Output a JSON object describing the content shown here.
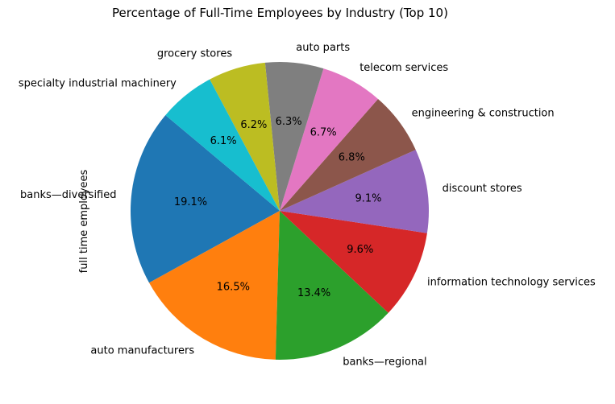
{
  "chart_data": {
    "type": "pie",
    "title": "Percentage of Full-Time Employees by Industry (Top 10)",
    "ylabel": "full time employees",
    "start_angle_deg": 140,
    "direction": "counterclockwise",
    "slices": [
      {
        "label": "banks—diversified",
        "value": 19.1,
        "pct_label": "19.1%",
        "color": "#1f77b4"
      },
      {
        "label": "auto manufacturers",
        "value": 16.5,
        "pct_label": "16.5%",
        "color": "#ff7f0e"
      },
      {
        "label": "banks—regional",
        "value": 13.4,
        "pct_label": "13.4%",
        "color": "#2ca02c"
      },
      {
        "label": "information technology services",
        "value": 9.6,
        "pct_label": "9.6%",
        "color": "#d62728"
      },
      {
        "label": "discount stores",
        "value": 9.1,
        "pct_label": "9.1%",
        "color": "#9467bd"
      },
      {
        "label": "engineering & construction",
        "value": 6.8,
        "pct_label": "6.8%",
        "color": "#8c564b"
      },
      {
        "label": "telecom services",
        "value": 6.7,
        "pct_label": "6.7%",
        "color": "#e377c2"
      },
      {
        "label": "auto parts",
        "value": 6.3,
        "pct_label": "6.3%",
        "color": "#7f7f7f"
      },
      {
        "label": "grocery stores",
        "value": 6.2,
        "pct_label": "6.2%",
        "color": "#bcbd22"
      },
      {
        "label": "specialty industrial machinery",
        "value": 6.1,
        "pct_label": "6.1%",
        "color": "#17becf"
      }
    ]
  }
}
